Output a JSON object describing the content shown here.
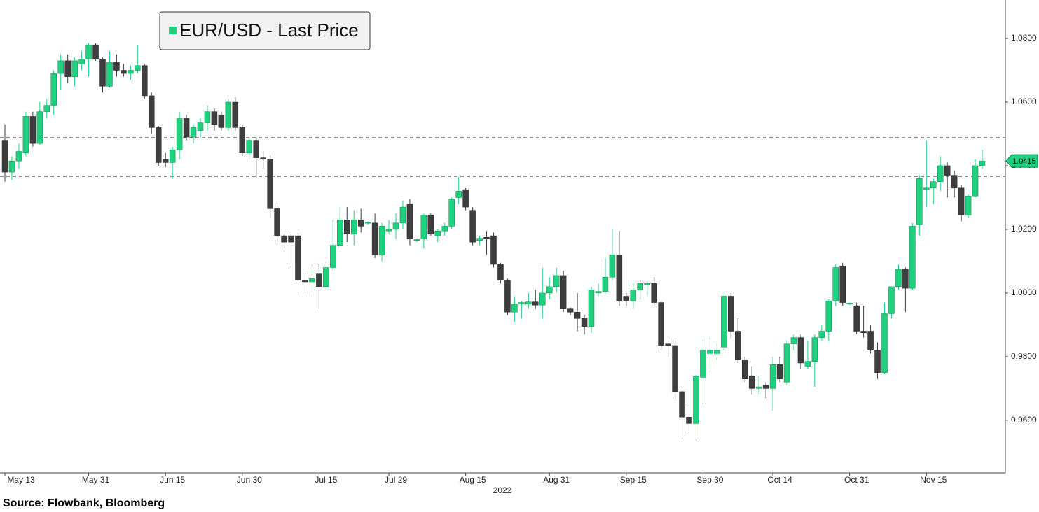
{
  "chart_data": {
    "type": "candlestick",
    "legend": "EUR/USD - Last Price",
    "legend_position": "top-left",
    "source": "Source: Flowbank, Bloomberg",
    "x_axis_year": "2022",
    "up_color": "#1fd07e",
    "down_color": "#3e3e3e",
    "ylim": [
      0.9437,
      1.0921
    ],
    "yticks": [
      {
        "value": 0.96,
        "label": "0.9600"
      },
      {
        "value": 0.98,
        "label": "0.9800"
      },
      {
        "value": 1.0,
        "label": "1.0000"
      },
      {
        "value": 1.02,
        "label": "1.0200"
      },
      {
        "value": 1.04,
        "label": "1.0400"
      },
      {
        "value": 1.06,
        "label": "1.0600"
      },
      {
        "value": 1.08,
        "label": "1.0800"
      }
    ],
    "reference_lines": [
      1.0488,
      1.0367
    ],
    "last_price": 1.0415,
    "categories": [
      "May 13",
      null,
      null,
      null,
      null,
      null,
      null,
      null,
      null,
      null,
      null,
      null,
      "May 31",
      null,
      null,
      null,
      null,
      null,
      null,
      null,
      null,
      null,
      null,
      "Jun 15",
      null,
      null,
      null,
      null,
      null,
      null,
      null,
      null,
      null,
      null,
      "Jun 30",
      null,
      null,
      null,
      null,
      null,
      null,
      null,
      null,
      null,
      null,
      "Jul 15",
      null,
      null,
      null,
      null,
      null,
      null,
      null,
      null,
      null,
      "Jul 29",
      null,
      null,
      null,
      null,
      null,
      null,
      null,
      null,
      null,
      null,
      "Aug 15",
      null,
      null,
      null,
      null,
      null,
      null,
      null,
      null,
      null,
      null,
      null,
      "Aug 31",
      null,
      null,
      null,
      null,
      null,
      null,
      null,
      null,
      null,
      null,
      "Sep 15",
      null,
      null,
      null,
      null,
      null,
      null,
      null,
      null,
      null,
      null,
      "Sep 30",
      null,
      null,
      null,
      null,
      null,
      null,
      null,
      null,
      null,
      "Oct 14",
      null,
      null,
      null,
      null,
      null,
      null,
      null,
      null,
      null,
      null,
      "Oct 31",
      null,
      null,
      null,
      null,
      null,
      null,
      null,
      null,
      null,
      null,
      "Nov 15",
      null,
      null,
      null,
      null,
      null,
      null,
      null,
      null
    ],
    "open": [
      1.048,
      1.038,
      1.0415,
      1.044,
      1.0555,
      1.047,
      1.057,
      1.059,
      1.069,
      1.073,
      1.068,
      1.072,
      1.0735,
      1.078,
      1.0735,
      1.065,
      1.0725,
      1.07,
      1.069,
      1.07,
      1.0715,
      1.062,
      1.052,
      1.042,
      1.041,
      1.045,
      1.055,
      1.049,
      1.051,
      1.0535,
      1.057,
      1.056,
      1.052,
      1.06,
      1.052,
      1.044,
      1.048,
      1.0425,
      1.042,
      1.0265,
      1.018,
      1.018,
      1.018,
      1.004,
      1.0035,
      1.006,
      1.002,
      1.008,
      1.015,
      1.023,
      1.0185,
      1.023,
      1.022,
      1.022,
      1.012,
      1.0195,
      1.02,
      1.022,
      1.028,
      1.0165,
      1.017,
      1.0245,
      1.018,
      1.0195,
      1.021,
      1.03,
      1.0325,
      1.026,
      1.0165,
      1.0175,
      1.018,
      1.009,
      1.004,
      0.994,
      0.9965,
      0.9965,
      0.9972,
      0.9962,
      1.0,
      1.002,
      1.0055,
      0.995,
      0.994,
      0.992,
      0.9895,
      1.0,
      1.0005,
      1.005,
      1.012,
      0.999,
      0.9975,
      1.001,
      1.0025,
      1.003,
      0.997,
      0.984,
      0.9835,
      0.969,
      0.961,
      0.959,
      0.9735,
      0.981,
      0.981,
      0.983,
      0.999,
      0.988,
      0.979,
      0.974,
      0.97,
      0.971,
      0.97,
      0.9775,
      0.972,
      0.984,
      0.986,
      0.977,
      0.9785,
      0.986,
      0.988,
      0.9975,
      1.0085,
      0.9965,
      0.996,
      0.988,
      0.988,
      0.982,
      0.975,
      0.9935,
      1.002,
      1.0075,
      1.0015,
      1.0215,
      1.0325,
      1.033,
      1.035,
      1.04,
      1.037,
      1.033,
      1.0245,
      1.0305,
      1.04
    ],
    "high": [
      1.053,
      1.043,
      1.047,
      1.057,
      1.057,
      1.06,
      1.061,
      1.07,
      1.075,
      1.075,
      1.074,
      1.076,
      1.0785,
      1.0785,
      1.074,
      1.076,
      1.075,
      1.072,
      1.0715,
      1.078,
      1.072,
      1.063,
      1.0525,
      1.044,
      1.046,
      1.057,
      1.056,
      1.053,
      1.055,
      1.059,
      1.058,
      1.057,
      1.061,
      1.0615,
      1.053,
      1.049,
      1.049,
      1.0445,
      1.043,
      1.0275,
      1.0195,
      1.0185,
      1.019,
      1.007,
      1.009,
      1.009,
      1.01,
      1.023,
      1.027,
      1.027,
      1.026,
      1.0265,
      1.0225,
      1.025,
      1.022,
      1.023,
      1.025,
      1.029,
      1.0295,
      1.017,
      1.025,
      1.025,
      1.02,
      1.022,
      1.03,
      1.0365,
      1.033,
      1.027,
      1.018,
      1.0195,
      1.019,
      1.0095,
      1.0045,
      0.999,
      0.9975,
      1.0,
      1.001,
      1.008,
      1.005,
      1.008,
      1.007,
      0.9955,
      1.0,
      0.993,
      1.002,
      1.003,
      1.011,
      1.02,
      1.0195,
      1.0,
      1.003,
      1.004,
      1.004,
      1.005,
      0.9975,
      0.985,
      0.986,
      0.97,
      0.964,
      0.976,
      0.9855,
      0.986,
      0.984,
      1.0,
      1.0,
      0.992,
      0.98,
      0.977,
      0.974,
      0.972,
      0.98,
      0.98,
      0.985,
      0.987,
      0.987,
      0.985,
      0.987,
      0.99,
      0.998,
      1.009,
      1.0095,
      0.997,
      0.997,
      0.996,
      0.99,
      0.9845,
      0.997,
      1.002,
      1.009,
      1.008,
      1.022,
      1.037,
      1.048,
      1.036,
      1.043,
      1.041,
      1.0385,
      1.034,
      1.031,
      1.042,
      1.045
    ],
    "low": [
      1.035,
      1.0355,
      1.039,
      1.043,
      1.046,
      1.0465,
      1.055,
      1.056,
      1.064,
      1.066,
      1.065,
      1.07,
      1.068,
      1.073,
      1.063,
      1.0645,
      1.068,
      1.068,
      1.067,
      1.069,
      1.061,
      1.05,
      1.04,
      1.0395,
      1.036,
      1.042,
      1.048,
      1.047,
      1.049,
      1.051,
      1.051,
      1.051,
      1.051,
      1.051,
      1.043,
      1.042,
      1.036,
      1.039,
      1.0235,
      1.016,
      1.014,
      1.008,
      1.0,
      1.0,
      1.0,
      0.995,
      1.001,
      1.007,
      1.014,
      1.016,
      1.015,
      1.019,
      1.0215,
      1.011,
      1.01,
      1.0185,
      1.017,
      1.02,
      1.015,
      1.016,
      1.014,
      1.018,
      1.016,
      1.018,
      1.02,
      1.028,
      1.026,
      1.015,
      1.015,
      1.012,
      1.008,
      1.003,
      0.993,
      0.991,
      0.992,
      0.995,
      0.995,
      0.992,
      0.998,
      1.0,
      0.994,
      0.993,
      0.988,
      0.987,
      0.9875,
      0.999,
      1.0,
      1.004,
      0.996,
      0.996,
      0.995,
      0.998,
      0.999,
      0.996,
      0.982,
      0.98,
      0.966,
      0.954,
      0.956,
      0.9535,
      0.964,
      0.975,
      0.979,
      0.982,
      0.986,
      0.978,
      0.972,
      0.968,
      0.968,
      0.967,
      0.963,
      0.972,
      0.971,
      0.982,
      0.976,
      0.976,
      0.9705,
      0.985,
      0.985,
      0.996,
      0.996,
      0.9962,
      0.987,
      0.986,
      0.981,
      0.973,
      0.9745,
      0.992,
      1.001,
      0.994,
      1.001,
      1.018,
      1.027,
      1.028,
      1.032,
      1.03,
      1.03,
      1.0225,
      1.0235,
      1.03,
      1.039
    ],
    "close": [
      1.038,
      1.0415,
      1.0445,
      1.0555,
      1.047,
      1.057,
      1.059,
      1.069,
      1.073,
      1.068,
      1.073,
      1.0735,
      1.078,
      1.0735,
      1.065,
      1.0725,
      1.07,
      1.069,
      1.07,
      1.0715,
      1.062,
      1.052,
      1.041,
      1.041,
      1.045,
      1.055,
      1.049,
      1.052,
      1.0535,
      1.057,
      1.053,
      1.052,
      1.06,
      1.052,
      1.044,
      1.048,
      1.0425,
      1.042,
      1.0265,
      1.018,
      1.016,
      1.016,
      1.004,
      1.0035,
      1.0045,
      1.002,
      1.008,
      1.015,
      1.023,
      1.0185,
      1.023,
      1.021,
      1.0222,
      1.012,
      1.021,
      1.02,
      1.022,
      1.027,
      1.017,
      1.0168,
      1.0245,
      1.0185,
      1.0195,
      1.021,
      1.0295,
      1.032,
      1.027,
      1.016,
      1.0172,
      1.017,
      1.009,
      1.004,
      0.994,
      0.9965,
      0.997,
      0.9972,
      0.9962,
      1.0,
      1.002,
      1.0055,
      0.995,
      0.994,
      0.992,
      0.9895,
      1.001,
      1.0005,
      1.005,
      1.012,
      0.9975,
      0.9975,
      1.001,
      1.003,
      1.003,
      0.997,
      0.9835,
      0.9835,
      0.969,
      0.961,
      0.959,
      0.974,
      0.982,
      0.982,
      0.982,
      0.999,
      0.988,
      0.979,
      0.973,
      0.97,
      0.9705,
      0.97,
      0.9775,
      0.973,
      0.984,
      0.986,
      0.978,
      0.9785,
      0.986,
      0.988,
      0.9975,
      1.008,
      0.997,
      0.9968,
      0.988,
      0.9875,
      0.982,
      0.975,
      0.9935,
      1.002,
      1.0075,
      1.0015,
      1.021,
      1.036,
      1.033,
      1.035,
      1.04,
      1.037,
      1.033,
      1.0245,
      1.0305,
      1.04,
      1.0415
    ]
  }
}
